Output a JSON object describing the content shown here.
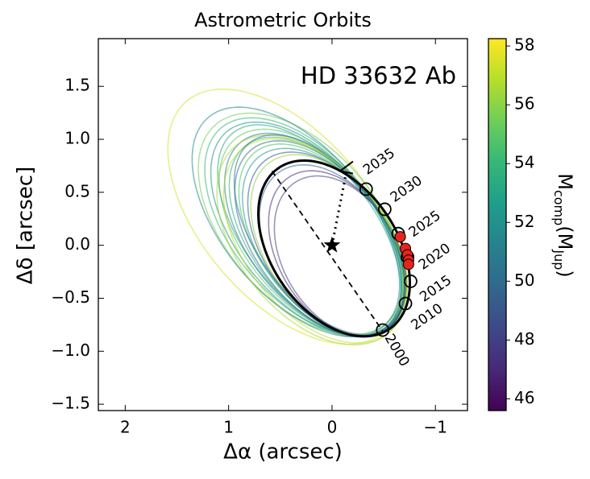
{
  "chart_data": {
    "type": "orbits",
    "title": "Astrometric Orbits",
    "annotation": "HD 33632 Ab",
    "xlabel": "Δα (arcsec)",
    "ylabel": "Δδ [arcsec]",
    "xlim": [
      2.26,
      -1.31
    ],
    "xticks": [
      2,
      1,
      0,
      {
        "value": -1,
        "label": "−1"
      }
    ],
    "ylim": [
      -1.56,
      1.95
    ],
    "yticks": [
      {
        "value": -1.5,
        "label": "−1.5"
      },
      {
        "value": -1,
        "label": "−1.0"
      },
      {
        "value": -0.5,
        "label": "−0.5"
      },
      {
        "value": 0,
        "label": "0.0"
      },
      0.5,
      {
        "value": 1,
        "label": "1.0"
      },
      1.5
    ],
    "colorbar": {
      "label": [
        "M",
        "comp",
        "(M",
        "Jup",
        ")"
      ],
      "clim": [
        45.6,
        58.25
      ],
      "ticks": [
        46,
        48,
        50,
        52,
        54,
        56,
        58
      ],
      "colormap": [
        "#440154",
        "#482878",
        "#3e4989",
        "#31688e",
        "#26828e",
        "#1f9e89",
        "#35b779",
        "#6ece58",
        "#b5de2b",
        "#fde725"
      ]
    },
    "orbits": [
      {
        "cx": 0.45,
        "cy": 0.27,
        "a": 1.45,
        "b": 0.8,
        "angle": 48,
        "mass": 57.5
      },
      {
        "cx": 0.28,
        "cy": 0.18,
        "a": 1.22,
        "b": 0.68,
        "angle": 49,
        "mass": 54
      },
      {
        "cx": 0.25,
        "cy": 0.15,
        "a": 1.2,
        "b": 0.66,
        "angle": 50,
        "mass": 52
      },
      {
        "cx": 0.22,
        "cy": 0.14,
        "a": 1.18,
        "b": 0.62,
        "angle": 51,
        "mass": 53
      },
      {
        "cx": 0.2,
        "cy": 0.12,
        "a": 1.15,
        "b": 0.65,
        "angle": 50,
        "mass": 55
      },
      {
        "cx": 0.18,
        "cy": 0.1,
        "a": 1.12,
        "b": 0.63,
        "angle": 51,
        "mass": 51
      },
      {
        "cx": 0.15,
        "cy": 0.08,
        "a": 1.1,
        "b": 0.62,
        "angle": 51,
        "mass": 53.5
      },
      {
        "cx": 0.12,
        "cy": 0.06,
        "a": 1.07,
        "b": 0.62,
        "angle": 52,
        "mass": 50
      },
      {
        "cx": 0.1,
        "cy": 0.05,
        "a": 1.05,
        "b": 0.6,
        "angle": 52,
        "mass": 54.5
      },
      {
        "cx": 0.08,
        "cy": 0.03,
        "a": 1.02,
        "b": 0.6,
        "angle": 52,
        "mass": 52.5
      },
      {
        "cx": 0.05,
        "cy": 0.01,
        "a": 0.99,
        "b": 0.6,
        "angle": 53,
        "mass": 49
      },
      {
        "cx": 0.03,
        "cy": 0,
        "a": 0.97,
        "b": 0.6,
        "angle": 53,
        "mass": 56
      },
      {
        "cx": 0.3,
        "cy": 0.2,
        "a": 1.25,
        "b": 0.72,
        "angle": 48,
        "mass": 55.5
      },
      {
        "cx": 0.16,
        "cy": 0.04,
        "a": 1.12,
        "b": 0.68,
        "angle": 50,
        "mass": 57
      },
      {
        "cx": -0.05,
        "cy": -0.08,
        "a": 0.86,
        "b": 0.56,
        "angle": 57,
        "mass": 47
      },
      {
        "cx": -0.08,
        "cy": -0.1,
        "a": 0.82,
        "b": 0.55,
        "angle": 58,
        "mass": 48
      },
      {
        "cx": 0,
        "cy": -0.05,
        "a": 0.9,
        "b": 0.58,
        "angle": 55,
        "mass": 49.5
      },
      {
        "cx": 0.35,
        "cy": 0.22,
        "a": 1.3,
        "b": 0.7,
        "angle": 49,
        "mass": 51.5
      },
      {
        "cx": 0.2,
        "cy": 0.05,
        "a": 1.15,
        "b": 0.7,
        "angle": 50,
        "mass": 56.5
      },
      {
        "cx": 0.12,
        "cy": 0.1,
        "a": 1.1,
        "b": 0.6,
        "angle": 52,
        "mass": 50.5
      }
    ],
    "best_orbit": {
      "cx": -0.02,
      "cy": -0.03,
      "a": 0.93,
      "b": 0.6,
      "angle": 53.7
    },
    "line_of_nodes": {
      "x": [
        0.58,
        -0.49
      ],
      "y": [
        0.7,
        -0.81
      ]
    },
    "periastron": {
      "x": [
        0,
        -0.14
      ],
      "y": [
        0,
        0.7
      ]
    },
    "epochs": {
      "labels": [
        "2035",
        "2030",
        "2025",
        "2020",
        "2015",
        "2010",
        "2000"
      ],
      "x": [
        -0.33,
        -0.51,
        -0.64,
        -0.73,
        -0.76,
        -0.71,
        -0.49
      ],
      "y": [
        0.53,
        0.34,
        0.11,
        -0.11,
        -0.34,
        -0.55,
        -0.8
      ]
    },
    "measurements": {
      "x": [
        -0.66,
        -0.71,
        -0.73,
        -0.74,
        -0.74
      ],
      "y": [
        0.08,
        -0.03,
        -0.09,
        -0.14,
        -0.18
      ],
      "color": "#e8231e"
    },
    "host": {
      "x": 0,
      "y": 0
    }
  }
}
